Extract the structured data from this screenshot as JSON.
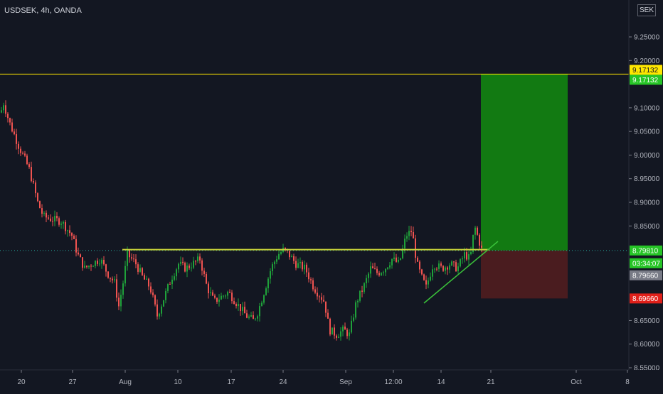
{
  "symbol_title": "USDSEK, 4h, OANDA",
  "currency_badge": "SEK",
  "countdown": "03:34:07",
  "colors": {
    "background": "#131722",
    "up": "#26a69a",
    "up_fill": "#1e9a3a",
    "down": "#ef5350",
    "resistance": "#c8d23a",
    "yellow": "#ffe600",
    "green_tag": "#26c426",
    "red_tag": "#e0201a",
    "profit_zone": "#127a12",
    "loss_zone": "#4a1c1f",
    "axis_text": "#b2b5be",
    "trend": "#3ac23a"
  },
  "chart_data": {
    "type": "candlestick",
    "title": "USDSEK, 4h, OANDA",
    "ylim": [
      8.545,
      9.3
    ],
    "y_ticks": [
      "9.25000",
      "9.20000",
      "9.10000",
      "9.05000",
      "9.00000",
      "8.95000",
      "8.90000",
      "8.85000",
      "8.65000",
      "8.60000",
      "8.55000"
    ],
    "x_labels": [
      "20",
      "27",
      "Aug",
      "10",
      "17",
      "24",
      "Sep",
      "12:00",
      "14",
      "21",
      "Oct",
      "8"
    ],
    "x_positions": [
      30,
      102,
      176,
      250,
      325,
      398,
      486,
      553,
      620,
      690,
      810,
      882
    ],
    "price_tags": [
      {
        "label": "9.17132",
        "value": 9.17132,
        "style": "yellow"
      },
      {
        "label": "9.17132",
        "value": 9.17132,
        "style": "green"
      },
      {
        "label": "8.79810",
        "value": 8.7981,
        "style": "green"
      },
      {
        "label": "8.79660",
        "value": 8.7966,
        "style": "gray"
      },
      {
        "label": "8.69660",
        "value": 8.6966,
        "style": "red"
      }
    ],
    "horizontal_line": 9.17132,
    "last_price_line": 8.7981,
    "resistance_level": 8.8,
    "position": {
      "entry": 8.7981,
      "target": 9.17132,
      "stop": 8.6966
    },
    "waypoints": [
      [
        0,
        9.09
      ],
      [
        4,
        9.11
      ],
      [
        12,
        9.07
      ],
      [
        25,
        9.02
      ],
      [
        40,
        8.97
      ],
      [
        52,
        8.9
      ],
      [
        60,
        8.87
      ],
      [
        70,
        8.865
      ],
      [
        85,
        8.86
      ],
      [
        100,
        8.83
      ],
      [
        108,
        8.79
      ],
      [
        118,
        8.76
      ],
      [
        128,
        8.77
      ],
      [
        140,
        8.78
      ],
      [
        150,
        8.75
      ],
      [
        160,
        8.73
      ],
      [
        166,
        8.68
      ],
      [
        172,
        8.73
      ],
      [
        178,
        8.79
      ],
      [
        190,
        8.77
      ],
      [
        200,
        8.74
      ],
      [
        210,
        8.72
      ],
      [
        220,
        8.66
      ],
      [
        230,
        8.7
      ],
      [
        240,
        8.74
      ],
      [
        250,
        8.77
      ],
      [
        260,
        8.76
      ],
      [
        270,
        8.77
      ],
      [
        280,
        8.78
      ],
      [
        290,
        8.72
      ],
      [
        300,
        8.69
      ],
      [
        310,
        8.7
      ],
      [
        320,
        8.71
      ],
      [
        330,
        8.69
      ],
      [
        345,
        8.66
      ],
      [
        355,
        8.65
      ],
      [
        362,
        8.67
      ],
      [
        370,
        8.71
      ],
      [
        380,
        8.76
      ],
      [
        390,
        8.79
      ],
      [
        398,
        8.8
      ],
      [
        405,
        8.79
      ],
      [
        415,
        8.77
      ],
      [
        428,
        8.76
      ],
      [
        440,
        8.72
      ],
      [
        455,
        8.69
      ],
      [
        462,
        8.63
      ],
      [
        472,
        8.62
      ],
      [
        482,
        8.63
      ],
      [
        490,
        8.62
      ],
      [
        500,
        8.69
      ],
      [
        510,
        8.72
      ],
      [
        520,
        8.76
      ],
      [
        530,
        8.75
      ],
      [
        540,
        8.76
      ],
      [
        550,
        8.78
      ],
      [
        560,
        8.77
      ],
      [
        570,
        8.83
      ],
      [
        578,
        8.84
      ],
      [
        585,
        8.77
      ],
      [
        592,
        8.74
      ],
      [
        598,
        8.72
      ],
      [
        608,
        8.77
      ],
      [
        620,
        8.76
      ],
      [
        632,
        8.77
      ],
      [
        642,
        8.76
      ],
      [
        652,
        8.79
      ],
      [
        660,
        8.78
      ],
      [
        666,
        8.85
      ],
      [
        672,
        8.82
      ],
      [
        676,
        8.8
      ]
    ]
  }
}
